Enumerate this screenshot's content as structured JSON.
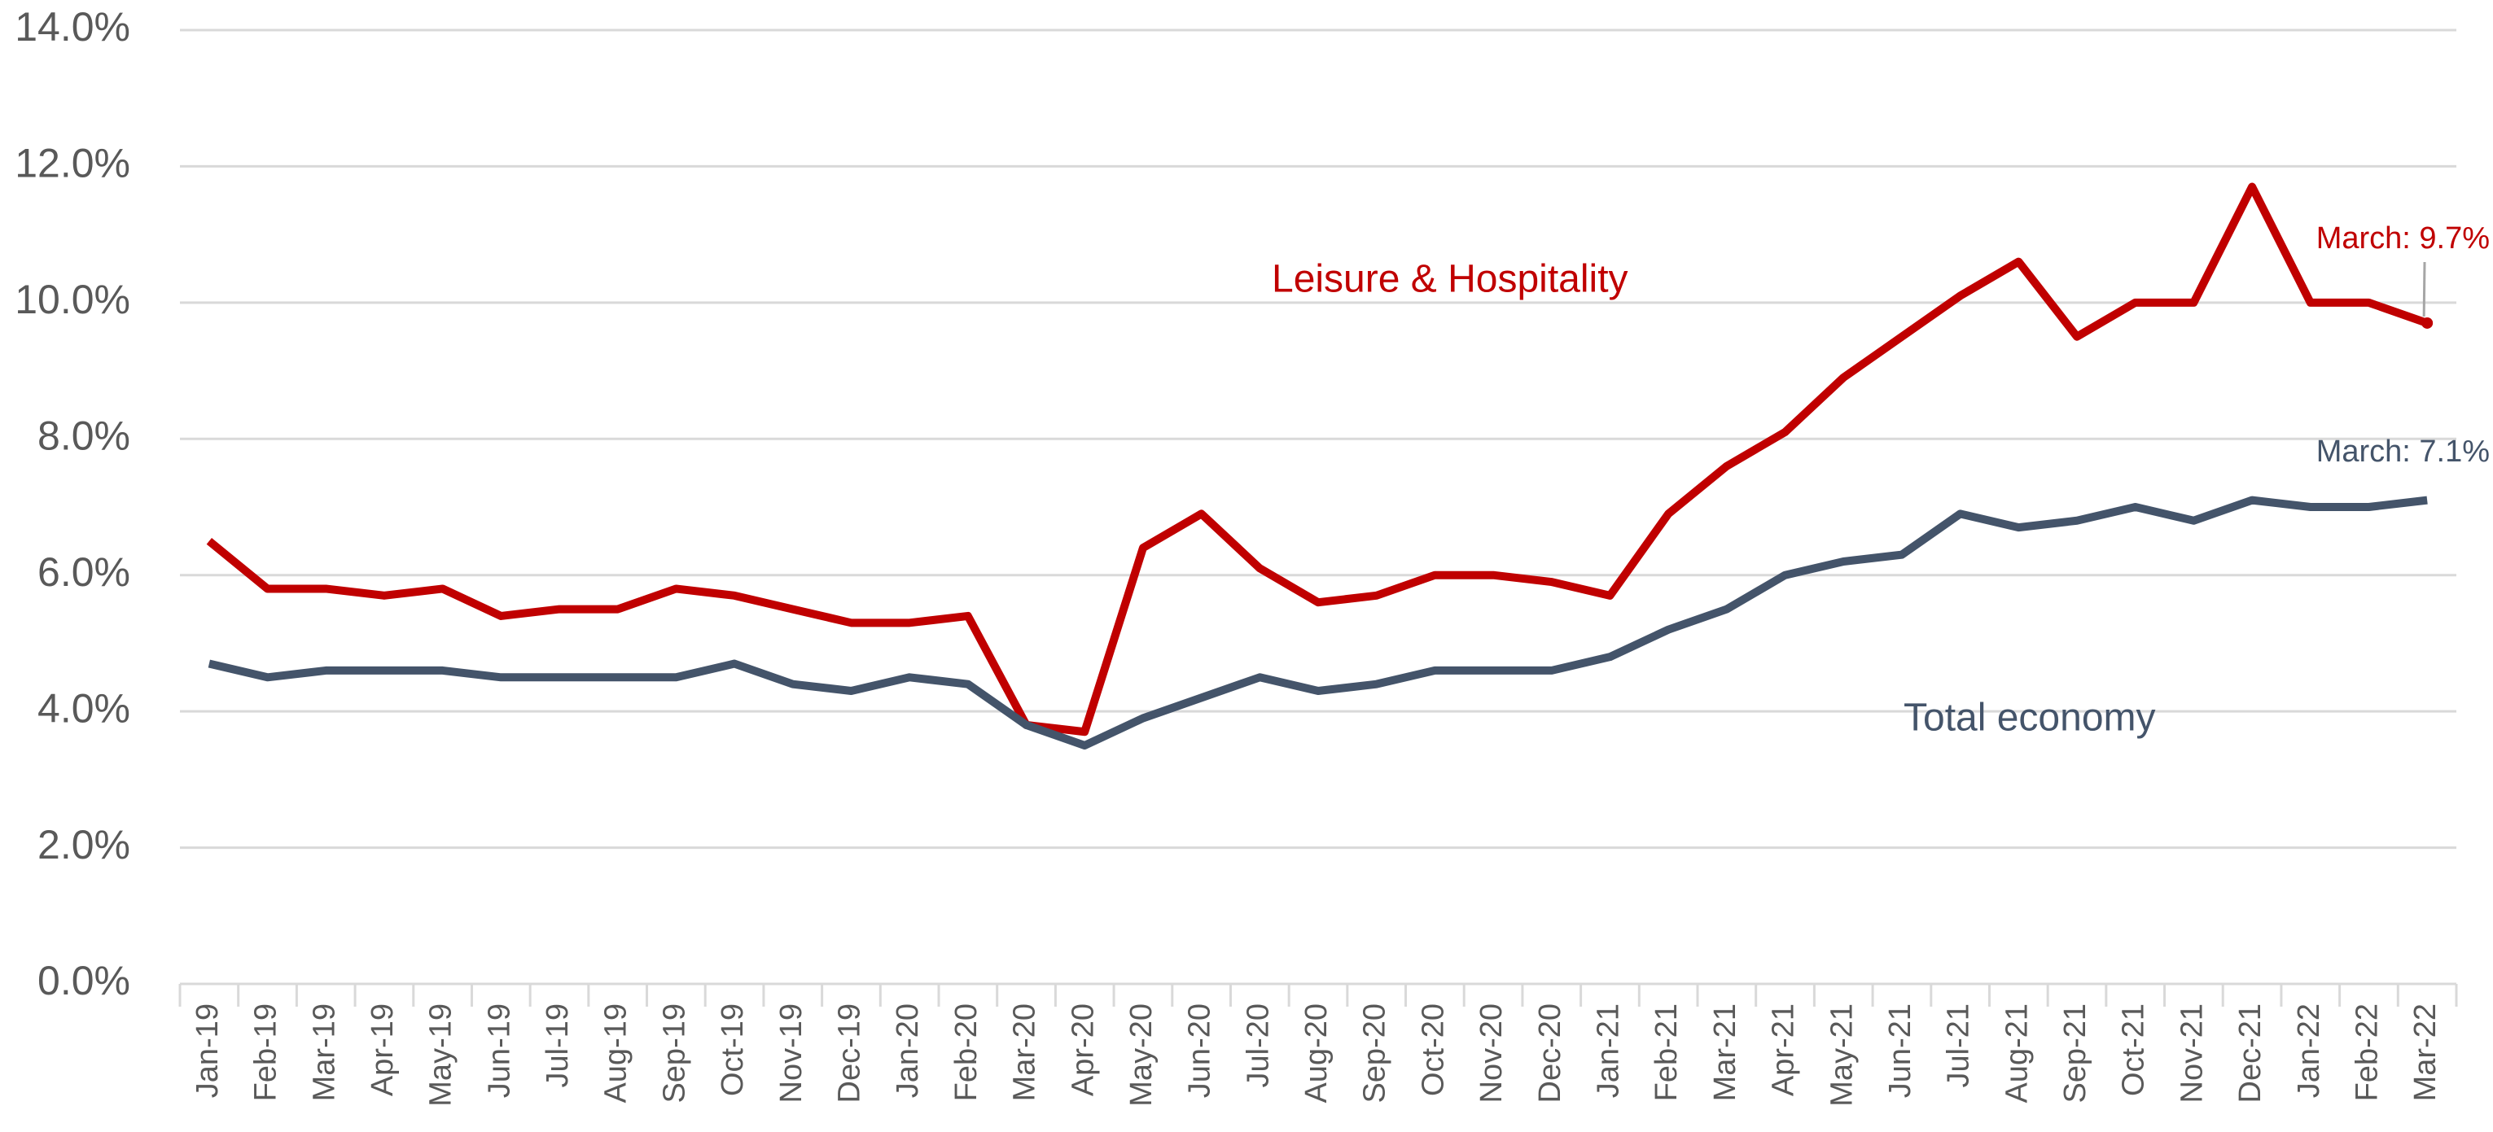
{
  "chart_data": {
    "type": "line",
    "categories": [
      "Jan-19",
      "Feb-19",
      "Mar-19",
      "Apr-19",
      "May-19",
      "Jun-19",
      "Jul-19",
      "Aug-19",
      "Sep-19",
      "Oct-19",
      "Nov-19",
      "Dec-19",
      "Jan-20",
      "Feb-20",
      "Mar-20",
      "Apr-20",
      "May-20",
      "Jun-20",
      "Jul-20",
      "Aug-20",
      "Sep-20",
      "Oct-20",
      "Nov-20",
      "Dec-20",
      "Jan-21",
      "Feb-21",
      "Mar-21",
      "Apr-21",
      "May-21",
      "Jun-21",
      "Jul-21",
      "Aug-21",
      "Sep-21",
      "Oct-21",
      "Nov-21",
      "Dec-21",
      "Jan-22",
      "Feb-22",
      "Mar-22"
    ],
    "series": [
      {
        "name": "Leisure & Hospitality",
        "color": "#c00000",
        "values": [
          6.5,
          5.8,
          5.8,
          5.7,
          5.8,
          5.4,
          5.5,
          5.5,
          5.8,
          5.7,
          5.5,
          5.3,
          5.3,
          5.4,
          3.8,
          3.7,
          6.4,
          6.9,
          6.1,
          5.6,
          5.7,
          6.0,
          6.0,
          5.9,
          5.7,
          6.9,
          7.6,
          8.1,
          8.9,
          9.5,
          10.1,
          10.6,
          9.5,
          10.0,
          10.0,
          11.7,
          10.0,
          10.0,
          9.7
        ]
      },
      {
        "name": "Total economy",
        "color": "#44546a",
        "values": [
          4.7,
          4.5,
          4.6,
          4.6,
          4.6,
          4.5,
          4.5,
          4.5,
          4.5,
          4.7,
          4.4,
          4.3,
          4.5,
          4.4,
          3.8,
          3.5,
          3.9,
          4.2,
          4.5,
          4.3,
          4.4,
          4.6,
          4.6,
          4.6,
          4.8,
          5.2,
          5.5,
          6.0,
          6.2,
          6.3,
          6.9,
          6.7,
          6.8,
          7.0,
          6.8,
          7.1,
          7.0,
          7.0,
          7.1
        ]
      }
    ],
    "annotations": [
      "March: 9.7%",
      "March: 7.1%"
    ],
    "ylim": [
      0,
      14
    ],
    "yticks": [
      {
        "value": 0,
        "label": "0.0%"
      },
      {
        "value": 2,
        "label": "2.0%"
      },
      {
        "value": 4,
        "label": "4.0%"
      },
      {
        "value": 6,
        "label": "6.0%"
      },
      {
        "value": 8,
        "label": "8.0%"
      },
      {
        "value": 10,
        "label": "10.0%"
      },
      {
        "value": 12,
        "label": "12.0%"
      },
      {
        "value": 14,
        "label": "14.0%"
      }
    ],
    "grid": true
  }
}
